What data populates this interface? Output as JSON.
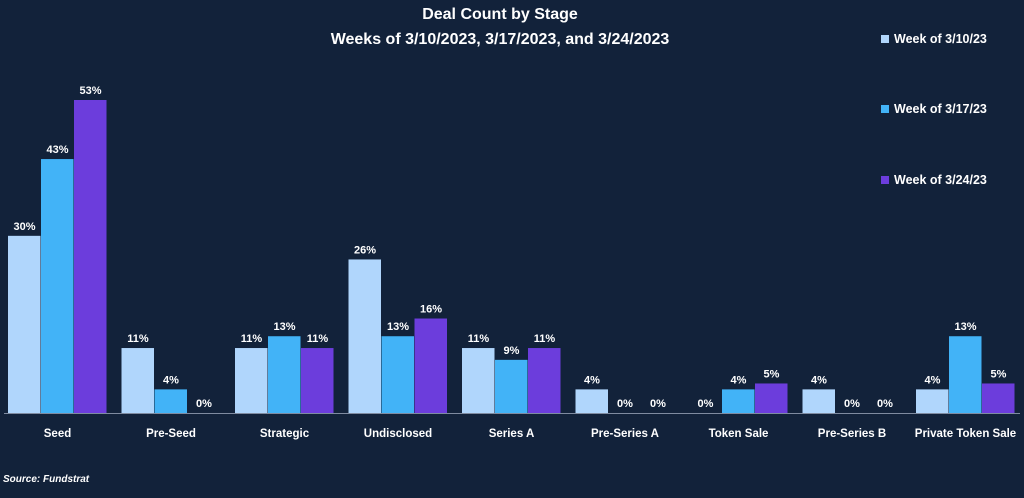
{
  "chart_data": {
    "type": "bar",
    "title": "Deal Count by Stage",
    "subtitle": "Weeks of 3/10/2023, 3/17/2023, and 3/24/2023",
    "xlabel": "",
    "ylabel": "",
    "value_suffix": "%",
    "ylim": [
      0,
      53
    ],
    "grid": false,
    "legend_position": "top-right",
    "categories": [
      "Seed",
      "Pre-Seed",
      "Strategic",
      "Undisclosed",
      "Series A",
      "Pre-Series A",
      "Token Sale",
      "Pre-Series B",
      "Private Token Sale"
    ],
    "series": [
      {
        "name": "Week of 3/10/23",
        "color": "#b0d6fc",
        "values": [
          30,
          11,
          11,
          26,
          11,
          4,
          0,
          4,
          4
        ]
      },
      {
        "name": "Week of 3/17/23",
        "color": "#42b3f7",
        "values": [
          43,
          4,
          13,
          13,
          9,
          0,
          4,
          0,
          13
        ]
      },
      {
        "name": "Week of 3/24/23",
        "color": "#6c3ddc",
        "values": [
          53,
          0,
          11,
          16,
          11,
          0,
          5,
          0,
          5
        ]
      }
    ]
  },
  "source_note": "Source: Fundstrat",
  "colors": {
    "background": "#12223a",
    "axis_line": "#7f8ba0",
    "text": "#ffffff"
  }
}
